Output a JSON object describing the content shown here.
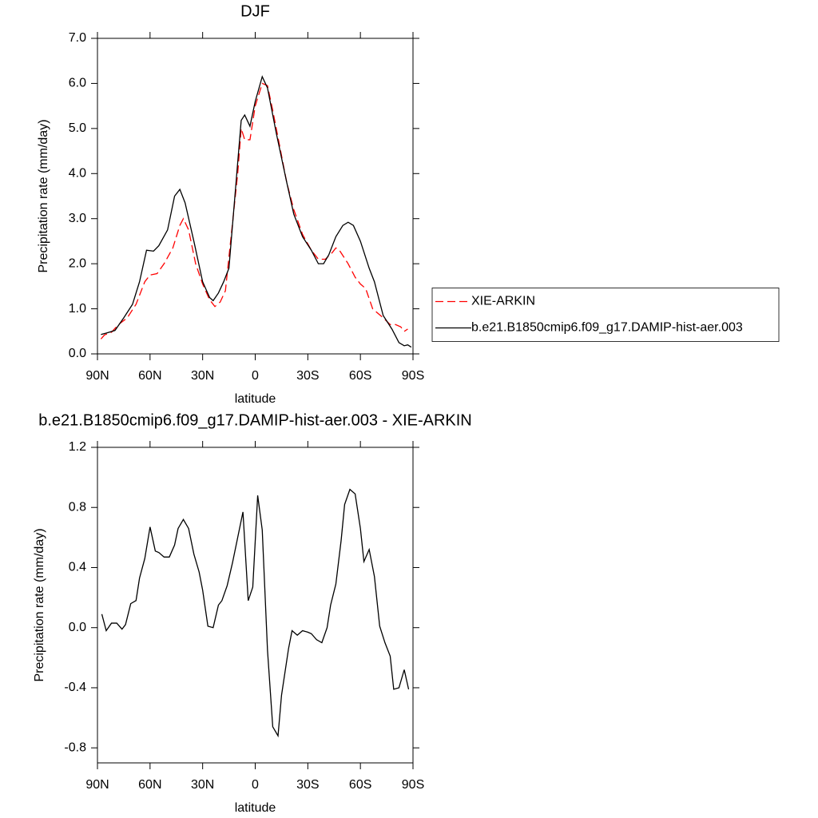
{
  "chart_data": [
    {
      "type": "line",
      "title": "DJF",
      "x_label": "latitude",
      "y_label": "Precipitation rate (mm/day)",
      "xlim": [
        90,
        -90
      ],
      "xticks": [
        {
          "value": 90,
          "label": "90N"
        },
        {
          "value": 60,
          "label": "60N"
        },
        {
          "value": 30,
          "label": "30N"
        },
        0,
        {
          "value": -30,
          "label": "30S"
        },
        {
          "value": -60,
          "label": "60S"
        },
        {
          "value": -90,
          "label": "90S"
        }
      ],
      "ylim": [
        0,
        7
      ],
      "yticks": [
        {
          "value": 0,
          "label": "0.0"
        },
        {
          "value": 1,
          "label": "1.0"
        },
        {
          "value": 2,
          "label": "2.0"
        },
        {
          "value": 3,
          "label": "3.0"
        },
        {
          "value": 4,
          "label": "4.0"
        },
        {
          "value": 5,
          "label": "5.0"
        },
        {
          "value": 6,
          "label": "6.0"
        },
        {
          "value": 7,
          "label": "7.0"
        }
      ],
      "legend": "right",
      "series": [
        {
          "name": "XIE-ARKIN",
          "color": "#ff0000",
          "linestyle": "dashed",
          "x": [
            88,
            86,
            82,
            78,
            73,
            68,
            63,
            60,
            56,
            52,
            47,
            43,
            41,
            38,
            34,
            30,
            26,
            23,
            20,
            17,
            10,
            8,
            6,
            3,
            0,
            -4,
            -7,
            -10,
            -14,
            -18,
            -22,
            -27,
            -32,
            -36,
            -40,
            -44,
            -46,
            -48,
            -53,
            -57,
            -60,
            -63,
            -67,
            -70,
            -73,
            -77,
            -80,
            -83,
            -85,
            -87
          ],
          "values": [
            0.33,
            0.42,
            0.48,
            0.65,
            0.8,
            1.1,
            1.6,
            1.75,
            1.78,
            2.0,
            2.35,
            2.85,
            3.0,
            2.75,
            2.0,
            1.55,
            1.2,
            1.05,
            1.15,
            1.4,
            4.0,
            5.0,
            4.75,
            4.75,
            5.5,
            6.0,
            5.95,
            5.4,
            4.6,
            3.8,
            3.2,
            2.65,
            2.3,
            2.1,
            2.1,
            2.25,
            2.35,
            2.3,
            2.0,
            1.7,
            1.55,
            1.45,
            1.0,
            0.9,
            0.8,
            0.65,
            0.65,
            0.6,
            0.5,
            0.55
          ]
        },
        {
          "name": "b.e21.B1850cmip6.f09_g17.DAMIP-hist-aer.003",
          "color": "#000000",
          "linestyle": "solid",
          "x": [
            88,
            85,
            80,
            75,
            70,
            66,
            62,
            58,
            55,
            50,
            46,
            43,
            40,
            35,
            30,
            26,
            24,
            21,
            18,
            15,
            8,
            6,
            3,
            0,
            -4,
            -7,
            -12,
            -18,
            -22,
            -27,
            -32,
            -36,
            -39,
            -42,
            -46,
            -50,
            -53,
            -56,
            -60,
            -65,
            -68,
            -73,
            -78,
            -82,
            -85,
            -87,
            -89
          ],
          "values": [
            0.43,
            0.46,
            0.52,
            0.8,
            1.1,
            1.6,
            2.3,
            2.28,
            2.4,
            2.75,
            3.5,
            3.65,
            3.35,
            2.5,
            1.6,
            1.25,
            1.18,
            1.35,
            1.6,
            1.9,
            5.18,
            5.3,
            5.05,
            5.6,
            6.15,
            5.9,
            4.9,
            3.8,
            3.1,
            2.6,
            2.3,
            2.0,
            2.0,
            2.2,
            2.6,
            2.85,
            2.92,
            2.85,
            2.5,
            1.9,
            1.6,
            0.85,
            0.55,
            0.25,
            0.18,
            0.2,
            0.15
          ]
        }
      ]
    },
    {
      "type": "line",
      "title": "b.e21.B1850cmip6.f09_g17.DAMIP-hist-aer.003 - XIE-ARKIN",
      "x_label": "latitude",
      "y_label": "Precipitation rate (mm/day)",
      "xlim": [
        90,
        -90
      ],
      "xticks": [
        {
          "value": 90,
          "label": "90N"
        },
        {
          "value": 60,
          "label": "60N"
        },
        {
          "value": 30,
          "label": "30N"
        },
        0,
        {
          "value": -30,
          "label": "30S"
        },
        {
          "value": -60,
          "label": "60S"
        },
        {
          "value": -90,
          "label": "90S"
        }
      ],
      "ylim": [
        -0.9,
        1.2
      ],
      "yticks": [
        -0.8,
        -0.4,
        {
          "value": 0,
          "label": "0.0"
        },
        0.4,
        0.8,
        1.2
      ],
      "series": [
        {
          "color": "#000000",
          "linestyle": "solid",
          "x": [
            87.5,
            85,
            82,
            79,
            76,
            74,
            71,
            68,
            66,
            63,
            60,
            57,
            55,
            52,
            49,
            46,
            44,
            41,
            38,
            35,
            32,
            30,
            27,
            24,
            21,
            19,
            16,
            13,
            10,
            7,
            4,
            1.4,
            -1.4,
            -4,
            -7,
            -10,
            -13,
            -15,
            -19,
            -21,
            -24,
            -27,
            -30,
            -32,
            -35,
            -38,
            -41,
            -43,
            -46,
            -49,
            -51,
            -54,
            -57,
            -60,
            -62,
            -65,
            -68,
            -71,
            -74,
            -77,
            -79,
            -82,
            -85,
            -87.5
          ],
          "values": [
            0.09,
            -0.02,
            0.03,
            0.03,
            -0.01,
            0.02,
            0.16,
            0.18,
            0.33,
            0.46,
            0.67,
            0.51,
            0.5,
            0.47,
            0.47,
            0.55,
            0.66,
            0.72,
            0.66,
            0.49,
            0.37,
            0.25,
            0.01,
            0.0,
            0.15,
            0.18,
            0.28,
            0.43,
            0.6,
            0.77,
            0.18,
            0.27,
            0.88,
            0.65,
            -0.15,
            -0.66,
            -0.72,
            -0.45,
            -0.14,
            -0.02,
            -0.05,
            -0.02,
            -0.03,
            -0.04,
            -0.08,
            -0.1,
            0.0,
            0.15,
            0.29,
            0.58,
            0.82,
            0.92,
            0.89,
            0.66,
            0.44,
            0.52,
            0.34,
            0.01,
            -0.1,
            -0.19,
            -0.41,
            -0.4,
            -0.28,
            -0.41
          ]
        }
      ]
    }
  ]
}
